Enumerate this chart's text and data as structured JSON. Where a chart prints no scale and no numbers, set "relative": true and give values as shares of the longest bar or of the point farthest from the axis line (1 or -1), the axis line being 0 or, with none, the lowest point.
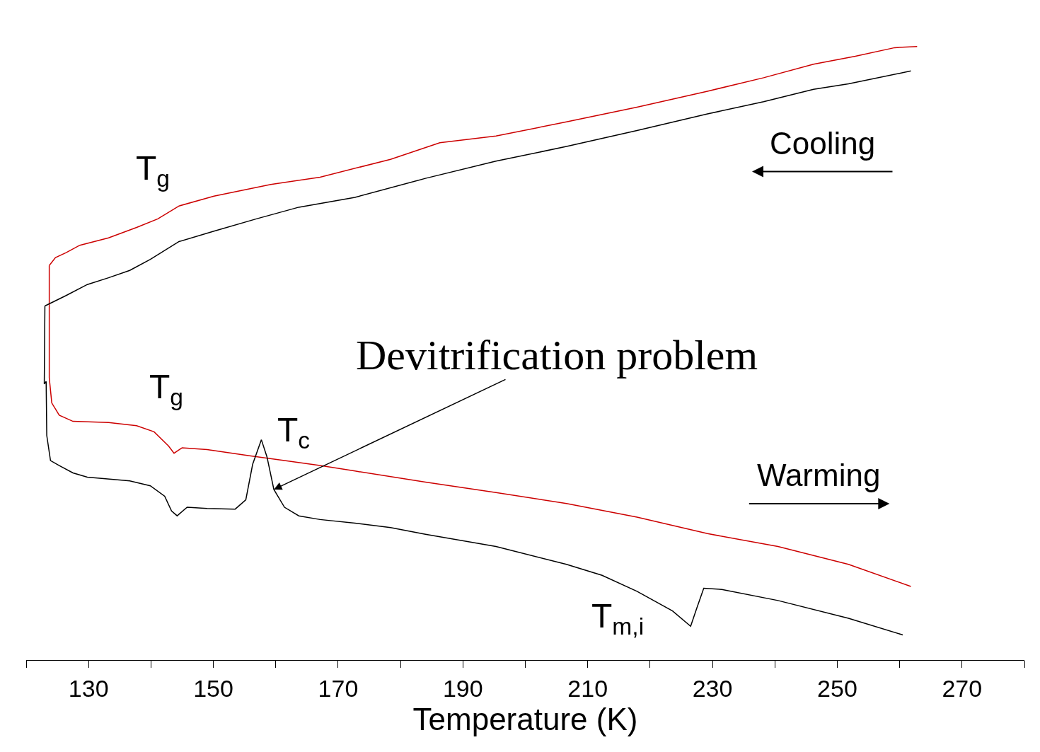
{
  "chart_data": {
    "type": "line",
    "relative": true,
    "xlabel": "Temperature (K)",
    "xlim": [
      120,
      280
    ],
    "xticks": [
      {
        "value": 120,
        "label": null
      },
      130,
      {
        "value": 140,
        "label": null
      },
      150,
      {
        "value": 160,
        "label": null
      },
      170,
      {
        "value": 180,
        "label": null
      },
      190,
      {
        "value": 200,
        "label": null
      },
      210,
      {
        "value": 220,
        "label": null
      },
      230,
      {
        "value": 240,
        "label": null
      },
      250,
      {
        "value": 260,
        "label": null
      },
      270,
      {
        "value": 280,
        "label": null
      }
    ],
    "marker": "none",
    "line_style": "solid",
    "series": [
      {
        "color": "#cc0000",
        "x": [
          262.8,
          259.2,
          252.9,
          246.2,
          238.2,
          229.2,
          217.9,
          206.6,
          195.3,
          186.3,
          178.4,
          167.1,
          159.2,
          150.1,
          144.5,
          141.1,
          137.7,
          133.2,
          128.6,
          126.4,
          124.7,
          123.7
        ],
        "values": [
          1.0,
          0.998,
          0.984,
          0.971,
          0.949,
          0.927,
          0.901,
          0.877,
          0.854,
          0.843,
          0.816,
          0.787,
          0.775,
          0.756,
          0.74,
          0.719,
          0.705,
          0.688,
          0.676,
          0.664,
          0.656,
          0.643
        ]
      },
      {
        "color": "#cc0000",
        "x": [
          123.7,
          123.7,
          124.1,
          125.3,
          127.5,
          133.2,
          137.7,
          140.5,
          142.8,
          143.7,
          145.0,
          149.0,
          155.8,
          161.4,
          167.1,
          172.7,
          184.0,
          195.3,
          206.6,
          217.9,
          229.2,
          240.5,
          251.8,
          261.8
        ],
        "values": [
          0.643,
          0.46,
          0.419,
          0.399,
          0.389,
          0.387,
          0.382,
          0.372,
          0.349,
          0.337,
          0.346,
          0.343,
          0.333,
          0.325,
          0.317,
          0.308,
          0.29,
          0.273,
          0.255,
          0.233,
          0.206,
          0.185,
          0.156,
          0.12
        ]
      },
      {
        "color": "#000000",
        "x": [
          261.8,
          251.8,
          246.2,
          238.2,
          229.2,
          217.9,
          206.6,
          195.3,
          184.0,
          172.7,
          163.7,
          156.9,
          150.1,
          144.5,
          139.9,
          136.6,
          133.2,
          129.8,
          126.4,
          123.0
        ],
        "values": [
          0.96,
          0.939,
          0.93,
          0.91,
          0.89,
          0.863,
          0.837,
          0.813,
          0.785,
          0.754,
          0.738,
          0.719,
          0.699,
          0.682,
          0.653,
          0.635,
          0.623,
          0.612,
          0.594,
          0.577
        ]
      },
      {
        "color": "#000000",
        "x": [
          123.0,
          122.9,
          123.2,
          123.3,
          123.9,
          125.3,
          127.5,
          129.8,
          136.6,
          139.9,
          142.2,
          143.3,
          144.2,
          145.8,
          149.0,
          153.5,
          155.2,
          156.3,
          157.7,
          158.6,
          159.7,
          161.4,
          163.7,
          167.1,
          172.7,
          178.4,
          184.0,
          195.3,
          206.6,
          212.3,
          217.9,
          223.6,
          226.5,
          227.5,
          228.6,
          231.5,
          240.5,
          251.8,
          260.5
        ],
        "values": [
          0.577,
          0.45,
          0.454,
          0.366,
          0.325,
          0.317,
          0.305,
          0.298,
          0.292,
          0.284,
          0.267,
          0.243,
          0.235,
          0.249,
          0.247,
          0.246,
          0.261,
          0.319,
          0.359,
          0.331,
          0.278,
          0.249,
          0.235,
          0.229,
          0.223,
          0.216,
          0.205,
          0.185,
          0.156,
          0.138,
          0.112,
          0.08,
          0.055,
          0.085,
          0.117,
          0.115,
          0.097,
          0.068,
          0.041
        ]
      }
    ],
    "annotations": [
      {
        "text": "T$_{g}$",
        "x": 141.1,
        "y": 0.719
      },
      {
        "text": "T$_{g}$",
        "x": 142.8,
        "y": 0.349
      },
      {
        "text": "T$_{c}$",
        "x": 157.7,
        "y": 0.359
      },
      {
        "text": "T$_{m,i}$",
        "x": 226.5,
        "y": 0.055
      },
      "Cooling",
      "Warming",
      {
        "text": "Devitrification problem",
        "x": 159.7,
        "y": 0.278
      }
    ]
  }
}
